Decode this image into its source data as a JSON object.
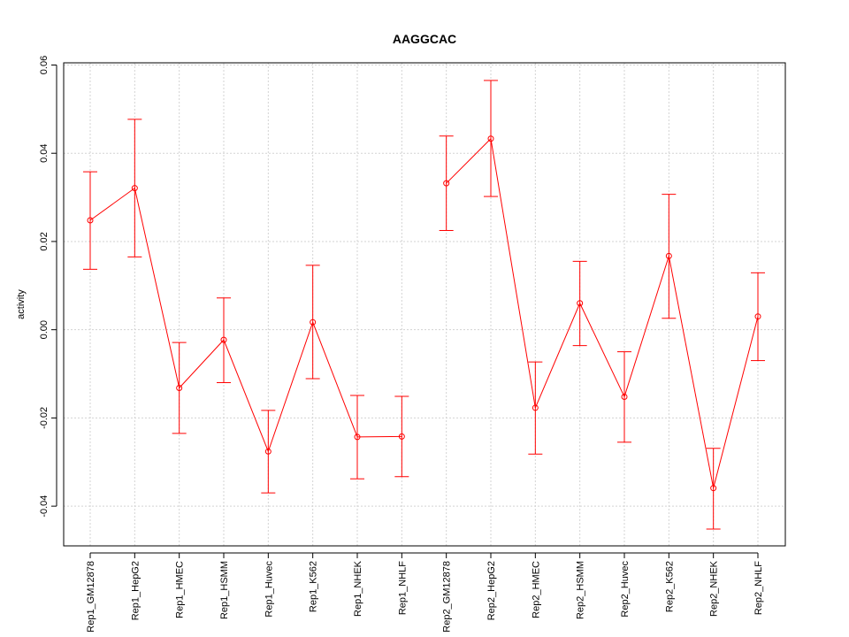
{
  "chart_data": {
    "type": "line",
    "title": "AAGGCAC",
    "xlabel": "",
    "ylabel": "activity",
    "ylim": [
      -0.049,
      0.0605
    ],
    "yticks": [
      -0.04,
      -0.02,
      0.0,
      0.02,
      0.04,
      0.06
    ],
    "ytick_labels": [
      "-0.04",
      "-0.02",
      "0.00",
      "0.02",
      "0.04",
      "0.06"
    ],
    "grid": true,
    "color": "#ff0000",
    "categories": [
      "Rep1_GM12878",
      "Rep1_HepG2",
      "Rep1_HMEC",
      "Rep1_HSMM",
      "Rep1_Huvec",
      "Rep1_K562",
      "Rep1_NHEK",
      "Rep1_NHLF",
      "Rep2_GM12878",
      "Rep2_HepG2",
      "Rep2_HMEC",
      "Rep2_HSMM",
      "Rep2_Huvec",
      "Rep2_K562",
      "Rep2_NHEK",
      "Rep2_NHLF"
    ],
    "values": [
      0.0248,
      0.0321,
      -0.0132,
      -0.0023,
      -0.0276,
      0.0017,
      -0.0243,
      -0.0242,
      0.0332,
      0.0433,
      -0.0177,
      0.006,
      -0.0152,
      0.0167,
      -0.0359,
      0.003
    ],
    "error_upper": [
      0.0358,
      0.0477,
      -0.0029,
      0.0072,
      -0.0183,
      0.0146,
      -0.0149,
      -0.0151,
      0.0439,
      0.0565,
      -0.0073,
      0.0155,
      -0.005,
      0.0307,
      -0.0269,
      0.0129
    ],
    "error_lower": [
      0.0137,
      0.0165,
      -0.0235,
      -0.012,
      -0.037,
      -0.0111,
      -0.0338,
      -0.0333,
      0.0225,
      0.0302,
      -0.0282,
      -0.0036,
      -0.0255,
      0.0026,
      -0.0452,
      -0.007
    ],
    "connected_segments": [
      [
        0,
        1
      ],
      [
        1,
        2
      ],
      [
        2,
        3
      ],
      [
        3,
        4
      ],
      [
        4,
        5
      ],
      [
        5,
        6
      ],
      [
        6,
        7
      ],
      [
        8,
        9
      ],
      [
        9,
        10
      ],
      [
        10,
        11
      ],
      [
        11,
        12
      ],
      [
        12,
        13
      ],
      [
        13,
        14
      ],
      [
        14,
        15
      ]
    ]
  }
}
